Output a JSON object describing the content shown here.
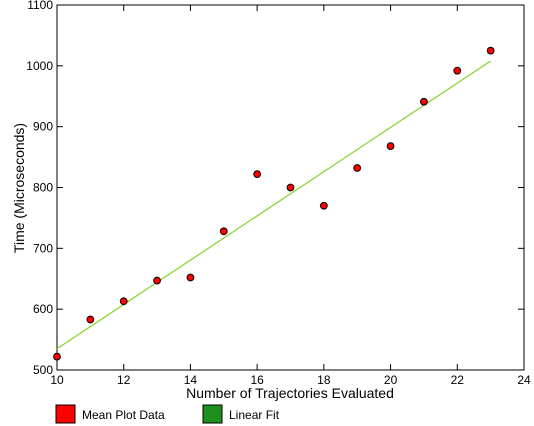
{
  "chart_data": {
    "type": "scatter",
    "title": "",
    "xlabel": "Number of Trajectories Evaluated",
    "ylabel": "Time (Microseconds)",
    "xlim": [
      10,
      24
    ],
    "ylim": [
      500,
      1100
    ],
    "xticks": [
      10,
      12,
      14,
      16,
      18,
      20,
      22,
      24
    ],
    "yticks": [
      500,
      600,
      700,
      800,
      900,
      1000,
      1100
    ],
    "grid": false,
    "legend_placement": "bottom-left",
    "series": [
      {
        "name": "Mean Plot Data",
        "kind": "scatter",
        "color": "#ff0000",
        "x": [
          10,
          11,
          12,
          13,
          14,
          15,
          16,
          17,
          18,
          19,
          20,
          21,
          22,
          23
        ],
        "y": [
          522,
          583,
          613,
          647,
          652,
          728,
          822,
          800,
          770,
          832,
          868,
          941,
          992,
          1025
        ]
      },
      {
        "name": "Linear Fit",
        "kind": "line",
        "color": "#7fd62a",
        "legend_color": "#1f8f1f",
        "x": [
          10,
          23
        ],
        "y": [
          535,
          1008
        ]
      }
    ]
  }
}
